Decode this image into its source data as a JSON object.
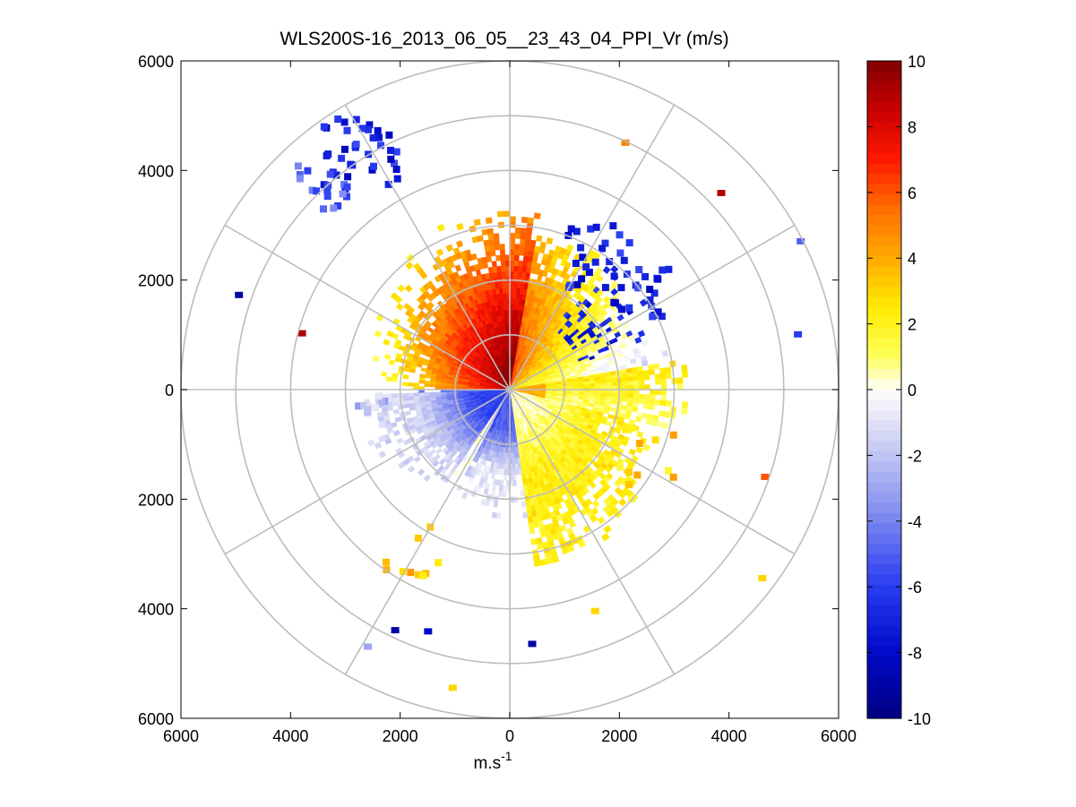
{
  "chart_data": {
    "type": "heatmap",
    "subtype": "polar-ppi",
    "title": "WLS200S-16_2013_06_05__23_43_04_PPI_Vr (m/s)",
    "xlabel": "m.s",
    "xlabel_superscript": "-1",
    "ylabel": "",
    "xlim": [
      -6000,
      6000
    ],
    "ylim": [
      -6000,
      6000
    ],
    "x_ticks": [
      "6000",
      "4000",
      "2000",
      "0",
      "2000",
      "4000",
      "6000"
    ],
    "x_tick_values": [
      -6000,
      -4000,
      -2000,
      0,
      2000,
      4000,
      6000
    ],
    "y_ticks": [
      "6000",
      "4000",
      "2000",
      "0",
      "2000",
      "4000",
      "6000"
    ],
    "y_tick_values": [
      6000,
      4000,
      2000,
      0,
      -2000,
      -4000,
      -6000
    ],
    "range_rings": [
      1000,
      2000,
      3000,
      4000,
      5000,
      6000
    ],
    "spokes_deg": [
      0,
      30,
      60,
      90,
      120,
      150,
      180,
      210,
      240,
      270,
      300,
      330
    ],
    "colorbar": {
      "min": -10,
      "max": 10,
      "ticks": [
        "10",
        "8",
        "6",
        "4",
        "2",
        "0",
        "-2",
        "-4",
        "-6",
        "-8",
        "-10"
      ],
      "tick_values": [
        10,
        8,
        6,
        4,
        2,
        0,
        -2,
        -4,
        -6,
        -8,
        -10
      ]
    },
    "field_summary": [
      {
        "sector": "north (azimuth 270-10 deg)",
        "range_m": [
          0,
          3000
        ],
        "velocity_ms": 8
      },
      {
        "sector": "north-east (azimuth 10-80 deg)",
        "range_m": [
          0,
          2500
        ],
        "velocity_ms": 5
      },
      {
        "sector": "east (azimuth 80-100 deg)",
        "range_m": [
          500,
          2800
        ],
        "velocity_ms": 2
      },
      {
        "sector": "south-east (azimuth 100-170 deg)",
        "range_m": [
          500,
          3000
        ],
        "velocity_ms": 1
      },
      {
        "sector": "south (azimuth 170-215 deg)",
        "range_m": [
          0,
          1800
        ],
        "velocity_ms": -4
      },
      {
        "sector": "south-west (azimuth 215-265 deg)",
        "range_m": [
          0,
          2000
        ],
        "velocity_ms": -5
      },
      {
        "sector": "west/north-west (azimuth 270-320 deg)",
        "range_m": [
          1500,
          3000
        ],
        "velocity_ms": 2
      }
    ],
    "isolated_points": [
      {
        "x": -4950,
        "y": 1720,
        "v": -9
      },
      {
        "x": -3800,
        "y": 1020,
        "v": 9
      },
      {
        "x": 4650,
        "y": -1600,
        "v": 6
      },
      {
        "x": 4600,
        "y": -3450,
        "v": 3
      },
      {
        "x": 3850,
        "y": 3580,
        "v": 9
      },
      {
        "x": 2100,
        "y": 4500,
        "v": 5
      },
      {
        "x": 5300,
        "y": 2700,
        "v": -5
      },
      {
        "x": 5250,
        "y": 1000,
        "v": -6
      },
      {
        "x": -2100,
        "y": -4400,
        "v": -9
      },
      {
        "x": -1500,
        "y": -4420,
        "v": -8
      },
      {
        "x": -2600,
        "y": -4700,
        "v": -3
      },
      {
        "x": -1050,
        "y": -5450,
        "v": 3
      },
      {
        "x": 400,
        "y": -4650,
        "v": -9
      },
      {
        "x": 1550,
        "y": -4050,
        "v": 3
      }
    ]
  }
}
